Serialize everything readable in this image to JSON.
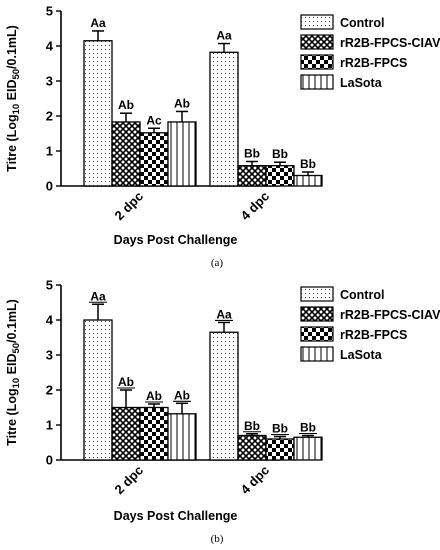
{
  "colors": {
    "ink": "#000000",
    "background": "#ffffff"
  },
  "chart_data": [
    {
      "type": "bar",
      "panel_caption": "(a)",
      "categories": [
        "2 dpc",
        "4 dpc"
      ],
      "ylabel": "Titre (Log10 EID50/0.1mL)",
      "ylabel_parts": {
        "main": "Titre (Log",
        "sub1": "10",
        "mid": " EID",
        "sub2": "50",
        "end": "/0.1mL)"
      },
      "xlabel": "Days Post Challenge",
      "ylim": [
        0,
        5
      ],
      "yticks": [
        "0",
        "1",
        "2",
        "3",
        "4",
        "5"
      ],
      "legend_position": "top-right",
      "series": [
        {
          "name": "Control",
          "pattern": "dots",
          "values": [
            4.15,
            3.82
          ],
          "errors": [
            0.28,
            0.25
          ],
          "labels": [
            "Aa",
            "Aa"
          ]
        },
        {
          "name": "rR2B-FPCS-CIAV",
          "pattern": "crosshatch",
          "values": [
            1.83,
            0.58
          ],
          "errors": [
            0.25,
            0.12
          ],
          "labels": [
            "Ab",
            "Bb"
          ]
        },
        {
          "name": "rR2B-FPCS",
          "pattern": "checker",
          "values": [
            1.52,
            0.58
          ],
          "errors": [
            0.13,
            0.1
          ],
          "labels": [
            "Ac",
            "Bb"
          ]
        },
        {
          "name": "LaSota",
          "pattern": "vlines",
          "values": [
            1.83,
            0.3
          ],
          "errors": [
            0.3,
            0.1
          ],
          "labels": [
            "Ab",
            "Bb"
          ]
        }
      ],
      "underlined_labels": false
    },
    {
      "type": "bar",
      "panel_caption": "(b)",
      "categories": [
        "2 dpc",
        "4 dpc"
      ],
      "ylabel": "Titre (Log10 EID50/0.1mL)",
      "ylabel_parts": {
        "main": "Titre (Log",
        "sub1": "10",
        "mid": " EID",
        "sub2": "50",
        "end": "/0.1mL)"
      },
      "xlabel": "Days Post Challenge",
      "ylim": [
        0,
        5
      ],
      "yticks": [
        "0",
        "1",
        "2",
        "3",
        "4",
        "5"
      ],
      "legend_position": "top-right",
      "series": [
        {
          "name": "Control",
          "pattern": "dots",
          "values": [
            4.0,
            3.65
          ],
          "errors": [
            0.45,
            0.28
          ],
          "labels": [
            "Aa",
            "Aa"
          ]
        },
        {
          "name": "rR2B-FPCS-CIAV",
          "pattern": "crosshatch",
          "values": [
            1.5,
            0.7
          ],
          "errors": [
            0.5,
            0.05
          ],
          "labels": [
            "Ab",
            "Bb"
          ]
        },
        {
          "name": "rR2B-FPCS",
          "pattern": "checker",
          "values": [
            1.5,
            0.6
          ],
          "errors": [
            0.1,
            0.07
          ],
          "labels": [
            "Ab",
            "Bb"
          ]
        },
        {
          "name": "LaSota",
          "pattern": "vlines",
          "values": [
            1.32,
            0.65
          ],
          "errors": [
            0.3,
            0.05
          ],
          "labels": [
            "Ab",
            "Bb"
          ]
        }
      ],
      "underlined_labels": true
    }
  ]
}
